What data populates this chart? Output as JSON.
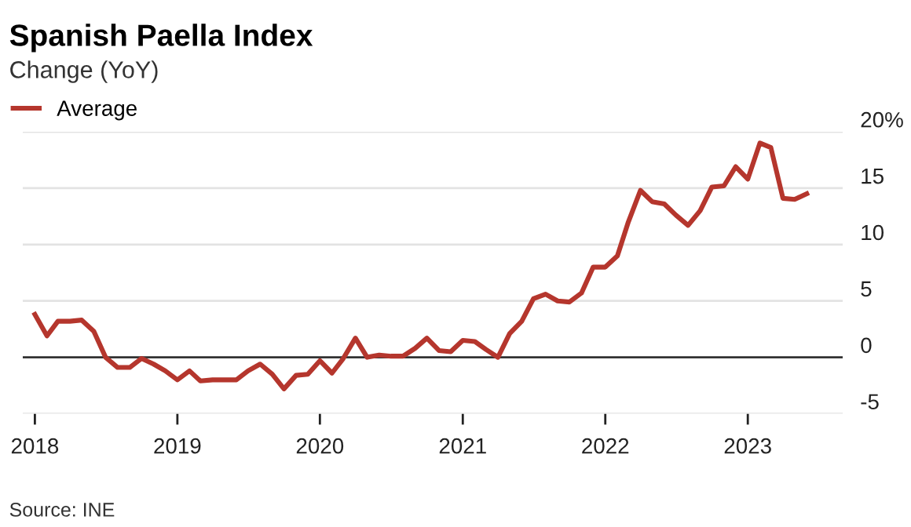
{
  "chart_data": {
    "type": "line",
    "title": "Spanish Paella Index",
    "subtitle": "Change (YoY)",
    "annotations": [
      "Source: INE"
    ],
    "x": [
      "2018-01",
      "2018-02",
      "2018-03",
      "2018-04",
      "2018-05",
      "2018-06",
      "2018-07",
      "2018-08",
      "2018-09",
      "2018-10",
      "2018-11",
      "2018-12",
      "2019-01",
      "2019-02",
      "2019-03",
      "2019-04",
      "2019-05",
      "2019-06",
      "2019-07",
      "2019-08",
      "2019-09",
      "2019-10",
      "2019-11",
      "2019-12",
      "2020-01",
      "2020-02",
      "2020-03",
      "2020-04",
      "2020-05",
      "2020-06",
      "2020-07",
      "2020-08",
      "2020-09",
      "2020-10",
      "2020-11",
      "2020-12",
      "2021-01",
      "2021-02",
      "2021-03",
      "2021-04",
      "2021-05",
      "2021-06",
      "2021-07",
      "2021-08",
      "2021-09",
      "2021-10",
      "2021-11",
      "2021-12",
      "2022-01",
      "2022-02",
      "2022-03",
      "2022-04",
      "2022-05",
      "2022-06",
      "2022-07",
      "2022-08",
      "2022-09",
      "2022-10",
      "2022-11",
      "2022-12",
      "2023-01",
      "2023-02",
      "2023-03",
      "2023-04",
      "2023-05",
      "2023-06"
    ],
    "series": [
      {
        "name": "Average",
        "color": "#b5362d",
        "values": [
          3.8,
          1.9,
          3.2,
          3.2,
          3.3,
          2.3,
          0,
          -0.9,
          -0.9,
          -0.1,
          -0.6,
          -1.2,
          -2.0,
          -1.2,
          -2.1,
          -2.0,
          -2.0,
          -2.0,
          -1.2,
          -0.6,
          -1.5,
          -2.8,
          -1.6,
          -1.5,
          -0.3,
          -1.4,
          -0.1,
          1.7,
          0,
          0.2,
          0.1,
          0.1,
          0.8,
          1.7,
          0.6,
          0.5,
          1.5,
          1.4,
          0.7,
          0,
          2.1,
          3.2,
          5.2,
          5.6,
          5.0,
          4.9,
          5.7,
          8.0,
          8.0,
          9.0,
          12.0,
          14.8,
          13.8,
          13.6,
          12.6,
          11.7,
          13.0,
          15.1,
          15.2,
          16.9,
          15.8,
          19.0,
          18.6,
          14.1,
          14.0,
          14.5
        ]
      }
    ],
    "xlim": [
      "2017-12-01",
      "2023-09-01"
    ],
    "xticks": [
      "2018",
      "2019",
      "2020",
      "2021",
      "2022",
      "2023"
    ],
    "ylim": [
      -5,
      20
    ],
    "yticks": [
      -5,
      0,
      5,
      10,
      15,
      {
        "value": 20,
        "label": "20%"
      }
    ],
    "ref_lines": [
      {
        "axis": "y",
        "value": 0,
        "color": "#333333"
      }
    ],
    "grid": "y",
    "legend": "top left",
    "line_style": "solid",
    "marker": "none"
  }
}
